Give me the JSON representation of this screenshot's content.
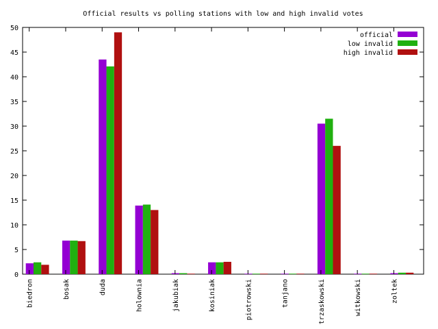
{
  "chart_data": {
    "type": "bar",
    "title": "Official results vs polling stations with low and high invalid votes",
    "xlabel": "",
    "ylabel": "",
    "ylim": [
      0,
      50
    ],
    "yticks": [
      0,
      5,
      10,
      15,
      20,
      25,
      30,
      35,
      40,
      45,
      50
    ],
    "grid": false,
    "legend_position": "top-right",
    "categories": [
      "biedron",
      "bosak",
      "duda",
      "holownia",
      "jakubiak",
      "kosiniak",
      "piotrowski",
      "tanjano",
      "trzaskowski",
      "witkowski",
      "zoltek"
    ],
    "series": [
      {
        "name": "official",
        "color": "#9400d3",
        "values": [
          2.2,
          6.8,
          43.5,
          13.9,
          0.2,
          2.4,
          0.1,
          0.1,
          30.5,
          0.1,
          0.2
        ]
      },
      {
        "name": "low invalid",
        "color": "#20b010",
        "values": [
          2.4,
          6.8,
          42.1,
          14.1,
          0.2,
          2.4,
          0.1,
          0.1,
          31.5,
          0.1,
          0.3
        ]
      },
      {
        "name": "high invalid",
        "color": "#b01010",
        "values": [
          1.9,
          6.7,
          49.0,
          13.0,
          0.1,
          2.5,
          0.1,
          0.1,
          26.0,
          0.1,
          0.3
        ]
      }
    ]
  }
}
